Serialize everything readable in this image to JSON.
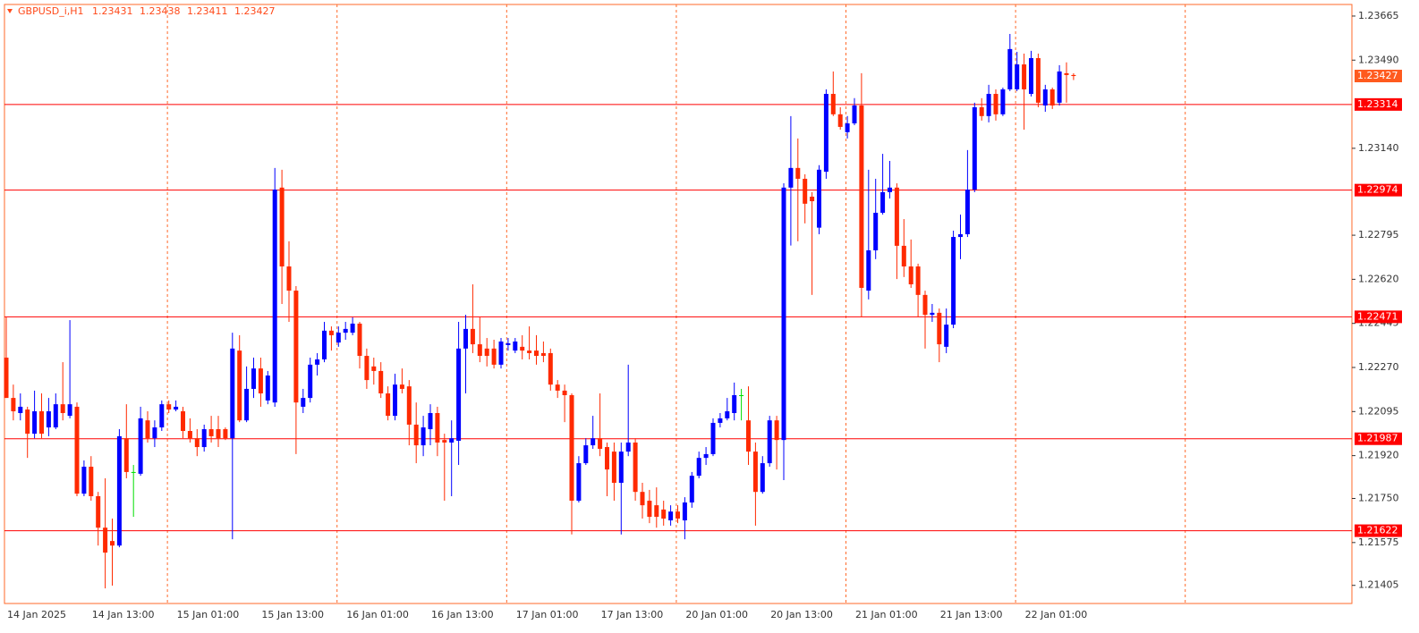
{
  "chart_data": {
    "type": "candlestick",
    "symbol": "GBPUSD_i,H1",
    "ylim": [
      1.21333,
      1.23711
    ],
    "yticks": [
      1.23665,
      {
        "value": 1.2349,
        "label": "1.23490"
      },
      {
        "value": 1.2314,
        "label": "1.23140"
      },
      1.22795,
      {
        "value": 1.2262,
        "label": "1.22620"
      },
      1.22445,
      {
        "value": 1.2227,
        "label": "1.22270"
      },
      1.22095,
      {
        "value": 1.2192,
        "label": "1.21920"
      },
      {
        "value": 1.2175,
        "label": "1.21750"
      },
      1.21575,
      1.21405
    ],
    "xtick_labels": [
      "14 Jan 2025",
      "14 Jan 13:00",
      "15 Jan 01:00",
      "15 Jan 13:00",
      "16 Jan 01:00",
      "16 Jan 13:00",
      "17 Jan 01:00",
      "17 Jan 13:00",
      "20 Jan 01:00",
      "20 Jan 13:00",
      "21 Jan 01:00",
      "21 Jan 13:00",
      "22 Jan 01:00"
    ],
    "levels": [
      1.23314,
      1.22974,
      1.22471,
      1.21987,
      1.21622
    ],
    "level_color": "#ff0000",
    "current_price_color": "#ff5a1e",
    "bull_color": "#0000ff",
    "bear_color": "#ff2a00",
    "doji_color": "#00dd00",
    "open": [
      1.22309,
      1.22149,
      1.22089,
      1.22103,
      1.22007,
      1.22096,
      1.22032,
      1.22032,
      1.22124,
      1.22078,
      1.22114,
      1.21769,
      1.21876,
      1.21759,
      1.21634,
      1.21581,
      1.21563,
      1.21989,
      1.21855,
      1.21848,
      1.2206,
      1.21989,
      1.22032,
      1.22124,
      1.22103,
      1.22096,
      1.22018,
      1.21989,
      1.21954,
      1.22025,
      1.22025,
      1.22025,
      1.21989,
      1.22337,
      1.2206,
      1.22185,
      1.22266,
      1.22139,
      1.22131,
      1.22984,
      1.22671,
      1.22575,
      1.22114,
      1.22149,
      1.22281,
      1.22302,
      1.22416,
      1.22369,
      1.22408,
      1.22408,
      1.22444,
      1.22316,
      1.22274,
      1.22256,
      1.22167,
      1.22078,
      1.22202,
      1.22195,
      1.22043,
      1.21961,
      1.22025,
      1.22089,
      1.21982,
      1.21972,
      1.21979,
      1.22345,
      1.22423,
      1.22362,
      1.22345,
      1.22345,
      1.22281,
      1.22359,
      1.22337,
      1.22352,
      1.22337,
      1.22337,
      1.22327,
      1.22327,
      1.22202,
      1.22178,
      1.2216,
      1.21741,
      1.2189,
      1.21961,
      1.21989,
      1.21954,
      1.21936,
      1.21812,
      1.21936,
      1.21972,
      1.21776,
      1.21741,
      1.21723,
      1.21706,
      1.21663,
      1.21698,
      1.21663,
      1.21734,
      1.2184,
      1.21911,
      1.21926,
      1.2205,
      1.22068,
      1.22089,
      1.2216,
      1.2206,
      1.21936,
      1.21776,
      1.2189,
      1.2206,
      1.21982,
      1.22984,
      1.23062,
      1.23019,
      1.22948,
      1.22825,
      1.23047,
      1.23356,
      1.23275,
      1.23204,
      1.23239,
      1.2331,
      1.22575,
      1.22735,
      1.22884,
      1.22966,
      1.22984,
      1.22753,
      1.22671,
      1.22671,
      1.22558,
      1.22479,
      1.22487,
      1.22352,
      1.2244,
      1.22788,
      1.22799,
      1.22976,
      1.23303,
      1.23268,
      1.23356,
      1.23275,
      1.23374,
      1.23374,
      1.23473,
      1.23356,
      1.23498,
      1.2331,
      1.23374,
      1.23321,
      1.23438,
      1.23431
    ],
    "high": [
      1.22469,
      1.22202,
      1.22167,
      1.22114,
      1.22178,
      1.22167,
      1.22149,
      1.22167,
      1.22291,
      1.22458,
      1.22131,
      1.21901,
      1.21918,
      1.21776,
      1.2183,
      1.2167,
      1.22025,
      1.22124,
      1.21883,
      1.22114,
      1.22096,
      1.2206,
      1.22139,
      1.22139,
      1.22139,
      1.22114,
      1.22068,
      1.22025,
      1.22043,
      1.22078,
      1.22078,
      1.22032,
      1.22408,
      1.22398,
      1.22274,
      1.22309,
      1.22309,
      1.22256,
      1.23062,
      1.23055,
      1.22771,
      1.22593,
      1.22185,
      1.22309,
      1.22327,
      1.22451,
      1.22433,
      1.22433,
      1.22451,
      1.22469,
      1.22451,
      1.22345,
      1.22309,
      1.22291,
      1.22195,
      1.22245,
      1.22266,
      1.2222,
      1.22131,
      1.22078,
      1.22124,
      1.22114,
      1.22007,
      1.2206,
      1.22451,
      1.22479,
      1.226,
      1.22469,
      1.22387,
      1.2238,
      1.22387,
      1.22387,
      1.22387,
      1.22398,
      1.22433,
      1.22398,
      1.22373,
      1.22345,
      1.2222,
      1.22202,
      1.22167,
      1.21918,
      1.21989,
      1.22078,
      1.22167,
      1.21972,
      1.21972,
      1.21972,
      1.22281,
      1.21989,
      1.21812,
      1.21784,
      1.21794,
      1.21741,
      1.21723,
      1.21723,
      1.21755,
      1.21855,
      1.21936,
      1.21954,
      1.22068,
      1.22089,
      1.22149,
      1.2221,
      1.22185,
      1.22195,
      1.21972,
      1.21918,
      1.22078,
      1.22078,
      1.23001,
      1.23268,
      1.23179,
      1.23037,
      1.22966,
      1.23073,
      1.23374,
      1.23445,
      1.23303,
      1.23268,
      1.23339,
      1.23438,
      1.23055,
      1.23019,
      1.23118,
      1.2309,
      1.23001,
      1.22859,
      1.22778,
      1.22682,
      1.22575,
      1.22522,
      1.22504,
      1.22504,
      1.22813,
      1.22877,
      1.23133,
      1.23321,
      1.23339,
      1.23392,
      1.23374,
      1.23381,
      1.23594,
      1.23523,
      1.23516,
      1.23527,
      1.23516,
      1.23392,
      1.23381,
      1.2347,
      1.23481,
      1.23438
    ],
    "low": [
      1.22149,
      1.2206,
      1.2206,
      1.21911,
      1.21989,
      1.21989,
      1.21997,
      1.22025,
      1.2206,
      1.22068,
      1.21759,
      1.21759,
      1.21741,
      1.21563,
      1.21393,
      1.21404,
      1.21556,
      1.2183,
      1.21677,
      1.2184,
      1.21972,
      1.21954,
      1.22018,
      1.22089,
      1.22096,
      1.21989,
      1.21972,
      1.21918,
      1.21936,
      1.21972,
      1.21954,
      1.21982,
      1.21588,
      1.22053,
      1.22053,
      1.22149,
      1.22114,
      1.22124,
      1.22114,
      1.22522,
      1.22451,
      1.21926,
      1.22089,
      1.22131,
      1.22238,
      1.22291,
      1.22337,
      1.22352,
      1.2238,
      1.22398,
      1.22266,
      1.22185,
      1.22202,
      1.22149,
      1.2206,
      1.2206,
      1.22167,
      1.21961,
      1.2189,
      1.21918,
      1.21961,
      1.21918,
      1.21741,
      1.21759,
      1.21883,
      1.22167,
      1.22327,
      1.22291,
      1.22274,
      1.22266,
      1.22266,
      1.22337,
      1.22327,
      1.22302,
      1.22302,
      1.22281,
      1.22291,
      1.22178,
      1.22149,
      1.22053,
      1.21607,
      1.21734,
      1.21883,
      1.21947,
      1.21918,
      1.21759,
      1.21741,
      1.21607,
      1.21918,
      1.21741,
      1.2167,
      1.21652,
      1.21634,
      1.21642,
      1.21642,
      1.21652,
      1.21588,
      1.21713,
      1.2183,
      1.21883,
      1.21918,
      1.22032,
      1.2206,
      1.2206,
      1.2206,
      1.21883,
      1.21642,
      1.21769,
      1.21876,
      1.21865,
      1.21823,
      1.22754,
      1.22771,
      1.22842,
      1.22558,
      1.22799,
      1.23019,
      1.23268,
      1.23214,
      1.23179,
      1.23232,
      1.22469,
      1.2254,
      1.227,
      1.22877,
      1.22941,
      1.22621,
      1.22629,
      1.22586,
      1.22469,
      1.22345,
      1.22451,
      1.22291,
      1.22327,
      1.22426,
      1.227,
      1.22788,
      1.22966,
      1.2325,
      1.23243,
      1.2325,
      1.23268,
      1.23367,
      1.23367,
      1.23214,
      1.23346,
      1.23303,
      1.23285,
      1.23296,
      1.2331,
      1.23321,
      1.23411
    ],
    "close": [
      1.22149,
      1.22096,
      1.22114,
      1.22007,
      1.22096,
      1.22007,
      1.22096,
      1.22124,
      1.22089,
      1.22124,
      1.21769,
      1.21876,
      1.21759,
      1.21634,
      1.21535,
      1.21563,
      1.21997,
      1.21855,
      1.21855,
      1.22068,
      1.21989,
      1.22032,
      1.22124,
      1.22103,
      1.22114,
      1.22018,
      1.21989,
      1.21954,
      1.22025,
      1.21997,
      1.21989,
      1.21989,
      1.22345,
      1.2206,
      1.22185,
      1.22266,
      1.22167,
      1.22238,
      1.22976,
      1.22671,
      1.22575,
      1.22131,
      1.22149,
      1.22281,
      1.22302,
      1.22416,
      1.22398,
      1.22408,
      1.22423,
      1.22444,
      1.22316,
      1.2222,
      1.22256,
      1.22167,
      1.22078,
      1.22202,
      1.22185,
      1.22043,
      1.21961,
      1.22032,
      1.22089,
      1.21972,
      1.21972,
      1.21989,
      1.22345,
      1.22423,
      1.22362,
      1.22316,
      1.22316,
      1.22281,
      1.22373,
      1.22366,
      1.22373,
      1.22337,
      1.22327,
      1.22316,
      1.22316,
      1.22202,
      1.22178,
      1.2216,
      1.21741,
      1.2189,
      1.21961,
      1.21989,
      1.21947,
      1.21865,
      1.21812,
      1.21936,
      1.21972,
      1.21776,
      1.21723,
      1.21677,
      1.21677,
      1.2167,
      1.21698,
      1.2167,
      1.21734,
      1.2184,
      1.21911,
      1.21926,
      1.2205,
      1.22068,
      1.22096,
      1.2216,
      1.2216,
      1.21936,
      1.21776,
      1.2189,
      1.2206,
      1.21982,
      1.22984,
      1.23062,
      1.23019,
      1.2292,
      1.2293,
      1.23055,
      1.23356,
      1.23275,
      1.23225,
      1.23239,
      1.2331,
      1.22586,
      1.22735,
      1.22884,
      1.22966,
      1.22984,
      1.22753,
      1.22671,
      1.226,
      1.22558,
      1.22479,
      1.22487,
      1.22362,
      1.2244,
      1.22788,
      1.22799,
      1.22976,
      1.23303,
      1.23268,
      1.23356,
      1.23275,
      1.23374,
      1.23534,
      1.23473,
      1.23374,
      1.23498,
      1.23321,
      1.23374,
      1.2331,
      1.23445,
      1.23431,
      1.23427
    ]
  }
}
